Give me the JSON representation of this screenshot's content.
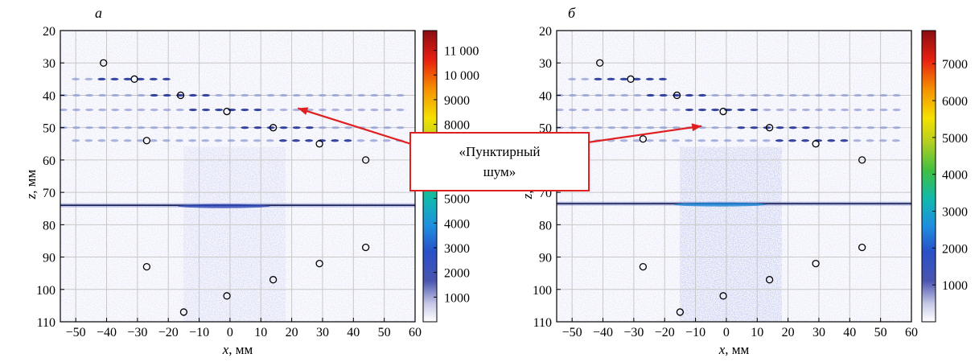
{
  "annotation": {
    "line1": "«Пунктирный",
    "line2": "шум»",
    "arrow_color": "#e02020",
    "box_border_color": "#e02020"
  },
  "chart_data": [
    {
      "type": "heatmap",
      "panel_label": "а",
      "xlabel": "x, мм",
      "ylabel": "z, мм",
      "xlim": [
        -55,
        60
      ],
      "ylim": [
        110,
        20
      ],
      "x_ticks": [
        -50,
        -40,
        -30,
        -20,
        -10,
        0,
        10,
        20,
        30,
        40,
        50,
        60
      ],
      "y_ticks": [
        20,
        30,
        40,
        50,
        60,
        70,
        80,
        90,
        100,
        110
      ],
      "grid": true,
      "colorbar": {
        "colormap": "jet",
        "range": [
          0,
          11800
        ],
        "tick_values": [
          1000,
          2000,
          3000,
          4000,
          5000,
          8000,
          9000,
          10000,
          11000
        ],
        "tick_labels": [
          "1000",
          "2000",
          "3000",
          "4000",
          "5000",
          "8000",
          "9000",
          "10 000",
          "11 000"
        ]
      },
      "reflectors": [
        {
          "x": -41,
          "z": 30
        },
        {
          "x": -31,
          "z": 35
        },
        {
          "x": -16,
          "z": 40
        },
        {
          "x": -1,
          "z": 45
        },
        {
          "x": 14,
          "z": 50
        },
        {
          "x": 29,
          "z": 55
        },
        {
          "x": 44,
          "z": 60
        },
        {
          "x": -27,
          "z": 54
        },
        {
          "x": -27,
          "z": 93
        },
        {
          "x": -15,
          "z": 107
        },
        {
          "x": -1,
          "z": 102
        },
        {
          "x": 14,
          "z": 97
        },
        {
          "x": 29,
          "z": 92
        },
        {
          "x": 44,
          "z": 87
        }
      ],
      "noise_rows_z": [
        35,
        40,
        44.5,
        50,
        54
      ],
      "interface_line_z": 74,
      "arrow_target": {
        "x": 22,
        "z": 44
      }
    },
    {
      "type": "heatmap",
      "panel_label": "б",
      "xlabel": "x, мм",
      "ylabel": "z, мм",
      "xlim": [
        -55,
        60
      ],
      "ylim": [
        110,
        20
      ],
      "x_ticks": [
        -50,
        -40,
        -30,
        -20,
        -10,
        0,
        10,
        20,
        30,
        40,
        50,
        60
      ],
      "y_ticks": [
        20,
        30,
        40,
        50,
        60,
        70,
        80,
        90,
        100,
        110
      ],
      "grid": true,
      "colorbar": {
        "colormap": "jet",
        "range": [
          0,
          7900
        ],
        "tick_values": [
          1000,
          2000,
          3000,
          4000,
          5000,
          6000,
          7000
        ],
        "tick_labels": [
          "1000",
          "2000",
          "3000",
          "4000",
          "5000",
          "6000",
          "7000"
        ]
      },
      "reflectors": [
        {
          "x": -41,
          "z": 30
        },
        {
          "x": -31,
          "z": 35
        },
        {
          "x": -16,
          "z": 40
        },
        {
          "x": -1,
          "z": 45
        },
        {
          "x": 14,
          "z": 50
        },
        {
          "x": 29,
          "z": 55
        },
        {
          "x": 44,
          "z": 60
        },
        {
          "x": -27,
          "z": 53.5
        },
        {
          "x": -27,
          "z": 93
        },
        {
          "x": -15,
          "z": 107
        },
        {
          "x": -1,
          "z": 102
        },
        {
          "x": 14,
          "z": 97
        },
        {
          "x": 29,
          "z": 92
        },
        {
          "x": 44,
          "z": 87
        }
      ],
      "noise_rows_z": [
        35,
        40,
        44.5,
        50,
        54
      ],
      "interface_line_z": 73.5,
      "arrow_target": {
        "x": -8,
        "z": 49.5
      }
    }
  ]
}
